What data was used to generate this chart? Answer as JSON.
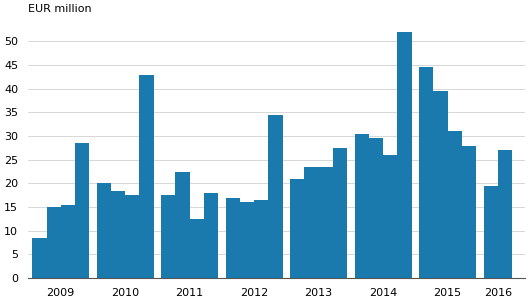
{
  "values": [
    8.5,
    15.0,
    15.5,
    28.5,
    20.0,
    18.5,
    17.5,
    43.0,
    17.5,
    22.5,
    12.5,
    18.0,
    17.0,
    16.0,
    16.5,
    34.5,
    21.0,
    23.5,
    23.5,
    27.5,
    30.5,
    29.5,
    26.0,
    52.0,
    44.5,
    39.5,
    31.0,
    28.0,
    19.5,
    27.0
  ],
  "years": [
    2009,
    2009,
    2009,
    2009,
    2010,
    2010,
    2010,
    2010,
    2011,
    2011,
    2011,
    2011,
    2012,
    2012,
    2012,
    2012,
    2013,
    2013,
    2013,
    2013,
    2014,
    2014,
    2014,
    2014,
    2015,
    2015,
    2015,
    2015,
    2016,
    2016
  ],
  "quarters": [
    1,
    2,
    3,
    4,
    1,
    2,
    3,
    4,
    1,
    2,
    3,
    4,
    1,
    2,
    3,
    4,
    1,
    2,
    3,
    4,
    1,
    2,
    3,
    4,
    1,
    2,
    3,
    4,
    1,
    2
  ],
  "bar_color": "#1a7aad",
  "title": "EUR million",
  "yticks": [
    0,
    5,
    10,
    15,
    20,
    25,
    30,
    35,
    40,
    45,
    50
  ],
  "ylim": [
    0,
    55
  ],
  "year_labels": [
    2009,
    2010,
    2011,
    2012,
    2013,
    2014,
    2015,
    2016
  ],
  "background_color": "#ffffff",
  "grid_color": "#c8c8c8"
}
